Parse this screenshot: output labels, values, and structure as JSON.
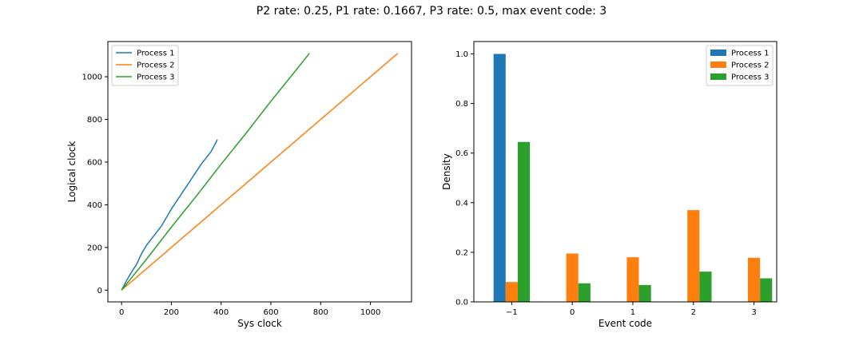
{
  "title": "P2 rate: 0.25, P1 rate: 0.1667, P3 rate: 0.5, max event code: 3",
  "colors": {
    "process1": "#1f77b4",
    "process2": "#ff7f0e",
    "process3": "#2ca02c"
  },
  "chart_data": [
    {
      "type": "line",
      "xlabel": "Sys clock",
      "ylabel": "Logical clock",
      "xlim": [
        -55,
        1165
      ],
      "ylim": [
        -55,
        1165
      ],
      "xticks": [
        0,
        200,
        400,
        600,
        800,
        1000
      ],
      "yticks": [
        0,
        200,
        400,
        600,
        800,
        1000
      ],
      "legend": "top-left",
      "series": [
        {
          "name": "Process 1",
          "color": "#1f77b4",
          "x": [
            0,
            20,
            40,
            60,
            80,
            100,
            130,
            160,
            200,
            240,
            280,
            320,
            360,
            385
          ],
          "y": [
            0,
            45,
            85,
            120,
            170,
            210,
            255,
            300,
            380,
            450,
            520,
            590,
            650,
            705
          ]
        },
        {
          "name": "Process 2",
          "color": "#ff7f0e",
          "x": [
            0,
            1110
          ],
          "y": [
            0,
            1110
          ]
        },
        {
          "name": "Process 3",
          "color": "#2ca02c",
          "x": [
            0,
            100,
            200,
            300,
            400,
            500,
            600,
            700,
            755
          ],
          "y": [
            0,
            145,
            295,
            440,
            590,
            735,
            885,
            1030,
            1110
          ]
        }
      ]
    },
    {
      "type": "bar",
      "xlabel": "Event code",
      "ylabel": "Density",
      "categories": [
        "−1",
        "0",
        "1",
        "2",
        "3"
      ],
      "ylim": [
        0,
        1.05
      ],
      "yticks": [
        "0.0",
        "0.2",
        "0.4",
        "0.6",
        "0.8",
        "1.0"
      ],
      "legend": "top-right",
      "series": [
        {
          "name": "Process 1",
          "color": "#1f77b4",
          "values": [
            1.0,
            0,
            0,
            0,
            0
          ]
        },
        {
          "name": "Process 2",
          "color": "#ff7f0e",
          "values": [
            0.08,
            0.195,
            0.18,
            0.37,
            0.178
          ]
        },
        {
          "name": "Process 3",
          "color": "#2ca02c",
          "values": [
            0.645,
            0.075,
            0.068,
            0.122,
            0.095
          ]
        }
      ]
    }
  ]
}
